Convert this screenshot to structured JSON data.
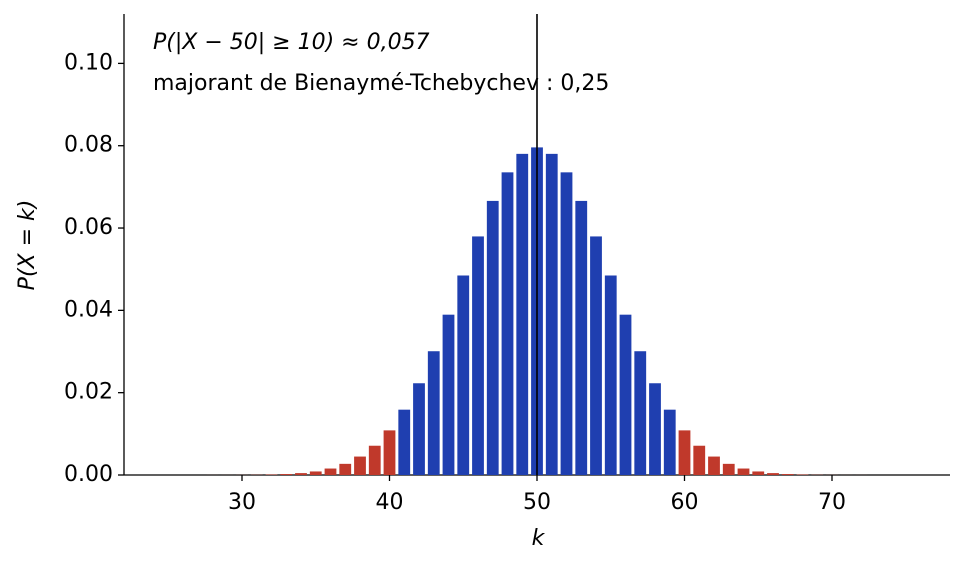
{
  "chart_data": {
    "type": "bar",
    "annotations": [
      "P(|X − 50| ≥ 10) ≈ 0,057",
      "majorant de Bienaymé-Tchebychev : 0,25"
    ],
    "annotation_colors": [
      "#c0392b",
      "#000000"
    ],
    "xlabel": "k",
    "ylabel": "P(X = k)",
    "x": [
      25,
      26,
      27,
      28,
      29,
      30,
      31,
      32,
      33,
      34,
      35,
      36,
      37,
      38,
      39,
      40,
      41,
      42,
      43,
      44,
      45,
      46,
      47,
      48,
      49,
      50,
      51,
      52,
      53,
      54,
      55,
      56,
      57,
      58,
      59,
      60,
      61,
      62,
      63,
      64,
      65,
      66,
      67,
      68,
      69,
      70,
      71,
      72,
      73,
      74,
      75
    ],
    "values": [
      0,
      0,
      0,
      1e-05,
      1e-05,
      2e-05,
      5e-05,
      0.00011,
      0.00023,
      0.00046,
      0.00086,
      0.00157,
      0.00271,
      0.00448,
      0.00711,
      0.01084,
      0.01587,
      0.02229,
      0.03007,
      0.03895,
      0.04847,
      0.05796,
      0.06659,
      0.07353,
      0.07802,
      0.07959,
      0.07802,
      0.07353,
      0.06659,
      0.05796,
      0.04847,
      0.03895,
      0.03007,
      0.02229,
      0.01587,
      0.01084,
      0.00711,
      0.00448,
      0.00271,
      0.00157,
      0.00086,
      0.00046,
      0.00023,
      0.00011,
      5e-05,
      2e-05,
      1e-05,
      1e-05,
      0,
      0,
      0
    ],
    "colors": [
      "#c0392b",
      "#c0392b",
      "#c0392b",
      "#c0392b",
      "#c0392b",
      "#c0392b",
      "#c0392b",
      "#c0392b",
      "#c0392b",
      "#c0392b",
      "#c0392b",
      "#c0392b",
      "#c0392b",
      "#c0392b",
      "#c0392b",
      "#c0392b",
      "#1f3fb0",
      "#1f3fb0",
      "#1f3fb0",
      "#1f3fb0",
      "#1f3fb0",
      "#1f3fb0",
      "#1f3fb0",
      "#1f3fb0",
      "#1f3fb0",
      "#1f3fb0",
      "#1f3fb0",
      "#1f3fb0",
      "#1f3fb0",
      "#1f3fb0",
      "#1f3fb0",
      "#1f3fb0",
      "#1f3fb0",
      "#1f3fb0",
      "#1f3fb0",
      "#c0392b",
      "#c0392b",
      "#c0392b",
      "#c0392b",
      "#c0392b",
      "#c0392b",
      "#c0392b",
      "#c0392b",
      "#c0392b",
      "#c0392b",
      "#c0392b",
      "#c0392b",
      "#c0392b",
      "#c0392b",
      "#c0392b",
      "#c0392b"
    ],
    "bar_width": 0.8,
    "vline": 50,
    "vline_color": "#000000",
    "xlim": [
      22,
      78
    ],
    "xticks": [
      30,
      40,
      50,
      60,
      70
    ],
    "ylim": [
      0,
      0.112
    ],
    "yticks": [
      {
        "value": 0,
        "label": "0.00"
      },
      {
        "value": 0.02,
        "label": "0.02"
      },
      {
        "value": 0.04,
        "label": "0.04"
      },
      {
        "value": 0.06,
        "label": "0.06"
      },
      {
        "value": 0.08,
        "label": "0.08"
      },
      {
        "value": 0.1,
        "label": "0.10"
      }
    ]
  }
}
